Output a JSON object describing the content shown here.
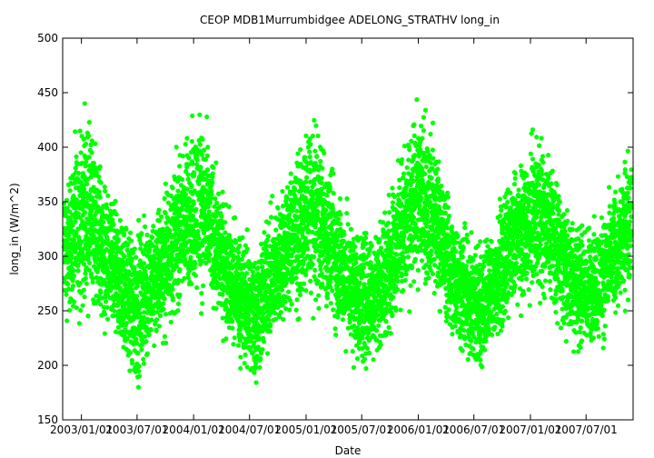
{
  "chart_data": {
    "type": "scatter",
    "title": "CEOP MDB1Murrumbidgee ADELONG_STRATHV  long_in",
    "xlabel": "Date",
    "ylabel": "long_in (W/m^2)",
    "x_range": [
      "2002-11-01",
      "2007-12-01"
    ],
    "ylim": [
      150,
      500
    ],
    "y_ticks": [
      150,
      200,
      250,
      300,
      350,
      400,
      450,
      500
    ],
    "x_ticks": [
      {
        "date": "2003-01-01",
        "label": "2003/01/01"
      },
      {
        "date": "2003-07-01",
        "label": "2003/07/01"
      },
      {
        "date": "2004-01-01",
        "label": "2004/01/01"
      },
      {
        "date": "2004-07-01",
        "label": "2004/07/01"
      },
      {
        "date": "2005-01-01",
        "label": "2005/01/01"
      },
      {
        "date": "2005-07-01",
        "label": "2005/07/01"
      },
      {
        "date": "2006-01-01",
        "label": "2006/01/01"
      },
      {
        "date": "2006-07-01",
        "label": "2006/07/01"
      },
      {
        "date": "2007-01-01",
        "label": "2007/01/01"
      },
      {
        "date": "2007-07-01",
        "label": "2007/07/01"
      }
    ],
    "grid": false,
    "color": "#00ff00",
    "series": [
      {
        "values_note": "dense daily scatter; envelope summarized as approximate min/max per half-month",
        "envelope": [
          {
            "date": "2002-11-15",
            "min": 225,
            "max": 385
          },
          {
            "date": "2003-01-10",
            "min": 235,
            "max": 450
          },
          {
            "date": "2003-02-15",
            "min": 230,
            "max": 430
          },
          {
            "date": "2003-04-01",
            "min": 210,
            "max": 370
          },
          {
            "date": "2003-05-15",
            "min": 195,
            "max": 350
          },
          {
            "date": "2003-06-25",
            "min": 160,
            "max": 345
          },
          {
            "date": "2003-08-10",
            "min": 190,
            "max": 350
          },
          {
            "date": "2003-10-01",
            "min": 215,
            "max": 380
          },
          {
            "date": "2003-12-01",
            "min": 245,
            "max": 420
          },
          {
            "date": "2004-01-20",
            "min": 245,
            "max": 455
          },
          {
            "date": "2004-03-01",
            "min": 235,
            "max": 410
          },
          {
            "date": "2004-04-15",
            "min": 215,
            "max": 360
          },
          {
            "date": "2004-06-01",
            "min": 190,
            "max": 340
          },
          {
            "date": "2004-07-15",
            "min": 160,
            "max": 330
          },
          {
            "date": "2004-09-01",
            "min": 200,
            "max": 350
          },
          {
            "date": "2004-11-01",
            "min": 225,
            "max": 390
          },
          {
            "date": "2005-01-15",
            "min": 245,
            "max": 440
          },
          {
            "date": "2005-03-01",
            "min": 235,
            "max": 420
          },
          {
            "date": "2005-04-15",
            "min": 215,
            "max": 380
          },
          {
            "date": "2005-06-01",
            "min": 195,
            "max": 345
          },
          {
            "date": "2005-07-15",
            "min": 180,
            "max": 340
          },
          {
            "date": "2005-09-01",
            "min": 205,
            "max": 345
          },
          {
            "date": "2005-11-01",
            "min": 235,
            "max": 400
          },
          {
            "date": "2006-01-10",
            "min": 260,
            "max": 460
          },
          {
            "date": "2006-03-01",
            "min": 245,
            "max": 420
          },
          {
            "date": "2006-04-15",
            "min": 215,
            "max": 360
          },
          {
            "date": "2006-06-01",
            "min": 195,
            "max": 340
          },
          {
            "date": "2006-07-15",
            "min": 175,
            "max": 330
          },
          {
            "date": "2006-09-01",
            "min": 205,
            "max": 340
          },
          {
            "date": "2006-11-01",
            "min": 235,
            "max": 385
          },
          {
            "date": "2007-01-20",
            "min": 250,
            "max": 430
          },
          {
            "date": "2007-03-01",
            "min": 240,
            "max": 420
          },
          {
            "date": "2007-04-15",
            "min": 220,
            "max": 370
          },
          {
            "date": "2007-06-01",
            "min": 200,
            "max": 345
          },
          {
            "date": "2007-07-15",
            "min": 200,
            "max": 340
          },
          {
            "date": "2007-09-01",
            "min": 215,
            "max": 355
          },
          {
            "date": "2007-10-15",
            "min": 235,
            "max": 385
          },
          {
            "date": "2007-11-25",
            "min": 255,
            "max": 420
          }
        ]
      }
    ]
  }
}
